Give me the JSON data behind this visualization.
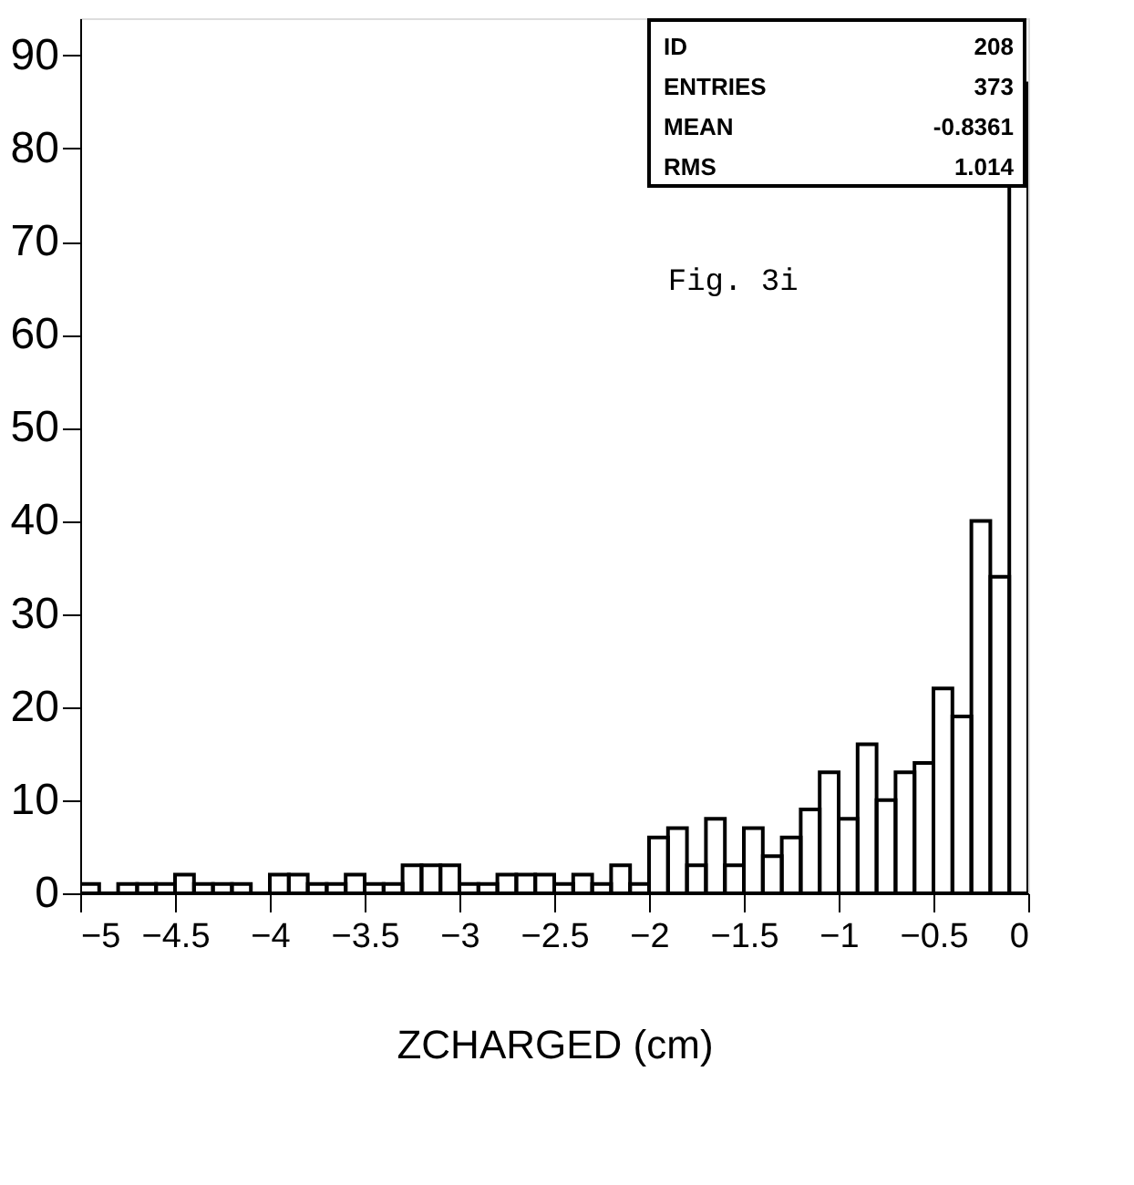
{
  "chart_data": {
    "type": "histogram",
    "xlabel": "ZCHARGED (cm)",
    "bins": [
      -5.0,
      -4.9,
      -4.8,
      -4.7,
      -4.6,
      -4.5,
      -4.4,
      -4.3,
      -4.2,
      -4.1,
      -4.0,
      -3.9,
      -3.8,
      -3.7,
      -3.6,
      -3.5,
      -3.4,
      -3.3,
      -3.2,
      -3.1,
      -3.0,
      -2.9,
      -2.8,
      -2.7,
      -2.6,
      -2.5,
      -2.4,
      -2.3,
      -2.2,
      -2.1,
      -2.0,
      -1.9,
      -1.8,
      -1.7,
      -1.6,
      -1.5,
      -1.4,
      -1.3,
      -1.2,
      -1.1,
      -1.0,
      -0.9,
      -0.8,
      -0.7,
      -0.6,
      -0.5,
      -0.4,
      -0.3,
      -0.2,
      -0.1,
      0.0
    ],
    "values": [
      1,
      0,
      1,
      1,
      1,
      2,
      1,
      1,
      1,
      0,
      2,
      2,
      1,
      1,
      2,
      1,
      1,
      3,
      3,
      3,
      1,
      1,
      2,
      2,
      2,
      1,
      2,
      1,
      3,
      1,
      6,
      7,
      3,
      8,
      3,
      7,
      4,
      6,
      9,
      13,
      8,
      16,
      10,
      13,
      14,
      22,
      19,
      40,
      34,
      87
    ],
    "color": "#000000",
    "xlim": [
      -5,
      0
    ],
    "xticks": [
      -5,
      -4.5,
      -4,
      -3.5,
      -3,
      -2.5,
      -2,
      -1.5,
      -1,
      -0.5,
      0
    ],
    "ylim": [
      0,
      94
    ],
    "yticks": [
      0,
      10,
      20,
      30,
      40,
      50,
      60,
      70,
      80,
      90
    ],
    "annotations": [
      "Fig. 3i",
      "ID",
      "208",
      "ENTRIES",
      "373",
      "MEAN",
      "-0.8361",
      "RMS",
      "1.014"
    ]
  }
}
